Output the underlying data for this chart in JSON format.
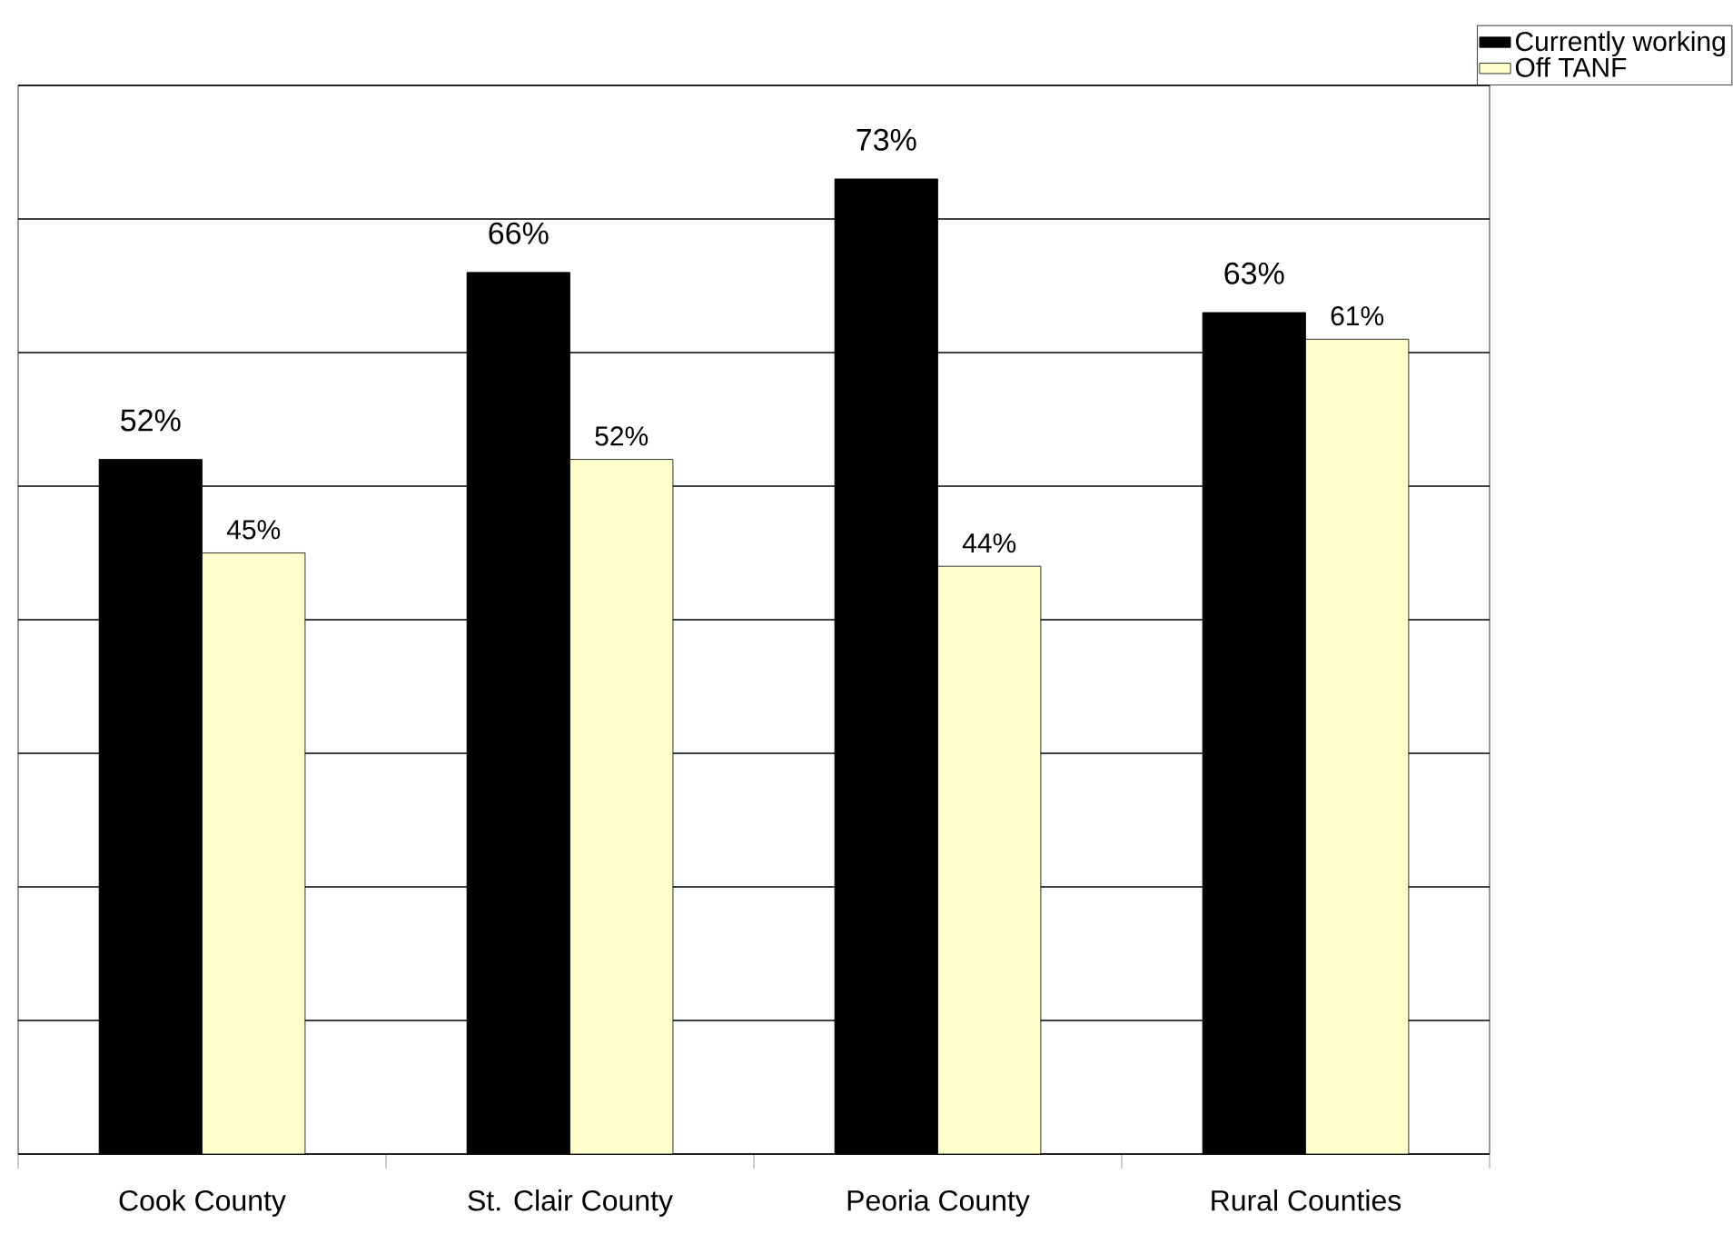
{
  "chart_data": {
    "type": "bar",
    "categories": [
      "Cook County",
      "St. Clair County",
      "Peoria County",
      "Rural Counties"
    ],
    "series": [
      {
        "name": "Currently working",
        "color": "#000000",
        "values": [
          52,
          66,
          73,
          63
        ],
        "value_labels": [
          "52%",
          "66%",
          "73%",
          "63%"
        ]
      },
      {
        "name": "Off TANF",
        "color": "#ffffcc",
        "values": [
          45,
          52,
          44,
          61
        ],
        "value_labels": [
          "45%",
          "52%",
          "44%",
          "61%"
        ]
      }
    ],
    "ylim": [
      0,
      80
    ],
    "yticks": [
      {
        "value": 0,
        "label": null
      },
      {
        "value": 10,
        "label": null
      },
      {
        "value": 20,
        "label": null
      },
      {
        "value": 30,
        "label": null
      },
      {
        "value": 40,
        "label": null
      },
      {
        "value": 50,
        "label": null
      },
      {
        "value": 60,
        "label": null
      },
      {
        "value": 70,
        "label": null
      },
      {
        "value": 80,
        "label": null
      }
    ],
    "grid": "y",
    "legend": "top right",
    "tick_labels": "x"
  }
}
